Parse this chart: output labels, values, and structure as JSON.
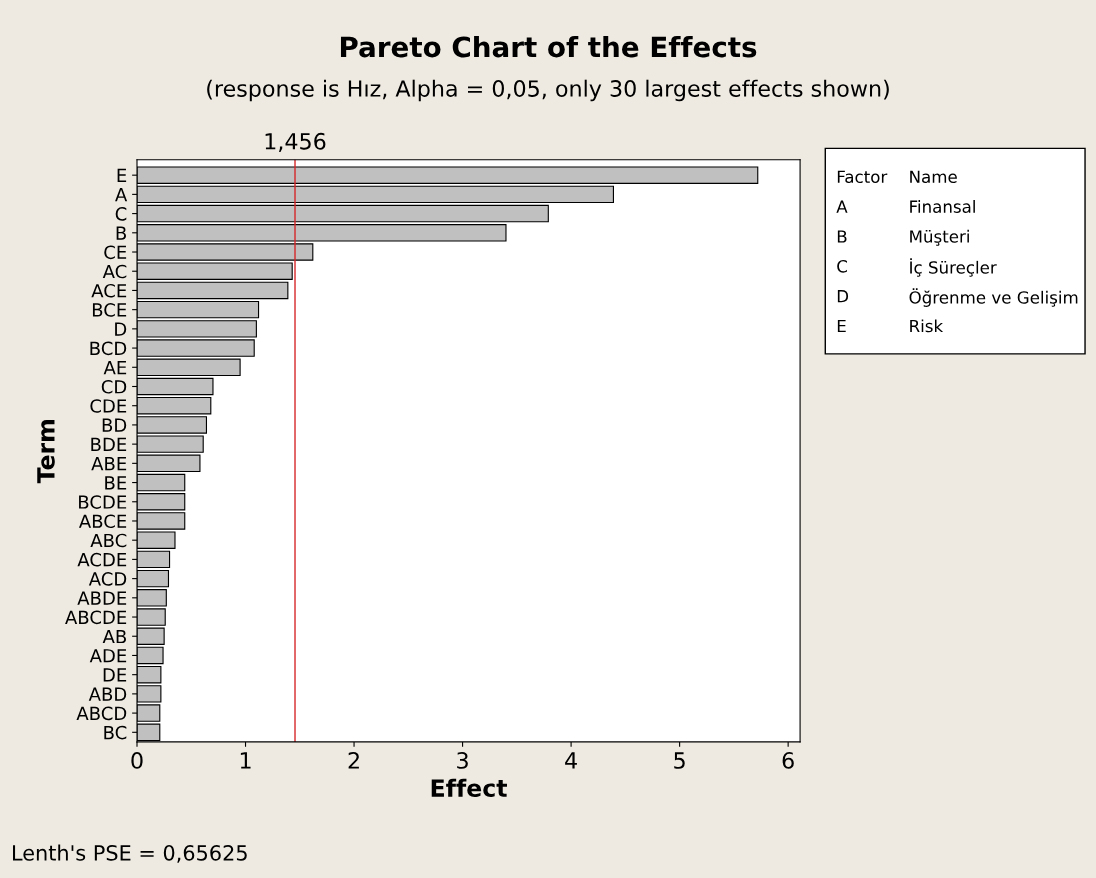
{
  "chart_data": {
    "type": "bar",
    "orientation": "horizontal",
    "title": "Pareto Chart of the Effects",
    "subtitle": "(response is Hız, Alpha = 0,05, only 30 largest effects shown)",
    "xlabel": "Effect",
    "ylabel": "Term",
    "categories": [
      "E",
      "A",
      "C",
      "B",
      "CE",
      "AC",
      "ACE",
      "BCE",
      "D",
      "BCD",
      "AE",
      "CD",
      "CDE",
      "BD",
      "BDE",
      "ABE",
      "BE",
      "BCDE",
      "ABCE",
      "ABC",
      "ACDE",
      "ACD",
      "ABDE",
      "ABCDE",
      "AB",
      "ADE",
      "DE",
      "ABD",
      "ABCD",
      "BC"
    ],
    "values": [
      5.72,
      4.39,
      3.79,
      3.4,
      1.62,
      1.43,
      1.39,
      1.12,
      1.1,
      1.08,
      0.95,
      0.7,
      0.68,
      0.64,
      0.61,
      0.58,
      0.44,
      0.44,
      0.44,
      0.35,
      0.3,
      0.29,
      0.27,
      0.26,
      0.25,
      0.24,
      0.22,
      0.22,
      0.21,
      0.21
    ],
    "color": "#c0c0c0",
    "xlim": [
      0,
      6.11
    ],
    "xticks": [
      0,
      1,
      2,
      3,
      4,
      5,
      6
    ],
    "ref_lines": [
      {
        "axis": "x",
        "value": 1.456,
        "label": "1,456",
        "color": "#d62728"
      }
    ],
    "annotations": [
      "Factor",
      "Name",
      "A",
      "Finansal",
      "B",
      "Müşteri",
      "C",
      "İç Süreçler",
      "D",
      "Öğrenme ve Gelişim",
      "E",
      "Risk",
      "Lenth's PSE = 0,65625"
    ],
    "grid": false,
    "legend": false
  }
}
